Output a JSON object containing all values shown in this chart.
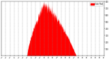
{
  "background_color": "#ffffff",
  "plot_bg_color": "#ffffff",
  "bar_color": "#ff0000",
  "legend_color": "#ff0000",
  "legend_label": "Solar Rad",
  "grid_color": "#888888",
  "grid_style": "--",
  "ylim": [
    0,
    800
  ],
  "xlim": [
    0,
    1440
  ],
  "yticks": [
    100,
    200,
    300,
    400,
    500,
    600,
    700,
    800
  ],
  "xtick_step": 60,
  "figsize": [
    1.6,
    0.87
  ],
  "dpi": 100,
  "start_minute": 360,
  "end_minute": 1050,
  "peak_minute": 590,
  "peak_value": 750
}
